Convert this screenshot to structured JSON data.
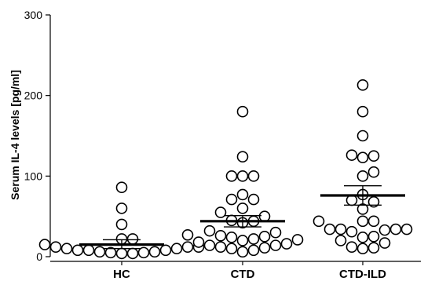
{
  "chart_data": {
    "type": "scatter",
    "title": "",
    "xlabel": "",
    "ylabel": "Serum IL-4 levels [pg/ml]",
    "ylim": [
      0,
      300
    ],
    "yticks": [
      0,
      100,
      200,
      300
    ],
    "grid": false,
    "categories": [
      "HC",
      "CTD",
      "CTD-ILD"
    ],
    "series": [
      {
        "category": "HC",
        "values": [
          86,
          60,
          40,
          22,
          22,
          15,
          12,
          12,
          12,
          10,
          10,
          8,
          8,
          8,
          6,
          6,
          5,
          5,
          4,
          4
        ],
        "mean": 15,
        "sem_upper": 21,
        "sem_lower": 10
      },
      {
        "category": "CTD",
        "values": [
          180,
          124,
          100,
          100,
          100,
          77,
          71,
          71,
          60,
          55,
          50,
          45,
          44,
          42,
          32,
          30,
          27,
          26,
          25,
          24,
          22,
          21,
          20,
          18,
          16,
          14,
          14,
          12,
          11,
          10,
          8,
          6
        ],
        "mean": 44,
        "sem_upper": 51,
        "sem_lower": 37
      },
      {
        "category": "CTD-ILD",
        "values": [
          213,
          180,
          150,
          126,
          125,
          123,
          105,
          100,
          77,
          70,
          68,
          59,
          44,
          44,
          44,
          34,
          34,
          34,
          34,
          33,
          31,
          25,
          24,
          20,
          17,
          12,
          11,
          10
        ],
        "mean": 76,
        "sem_upper": 88,
        "sem_lower": 64
      }
    ]
  }
}
